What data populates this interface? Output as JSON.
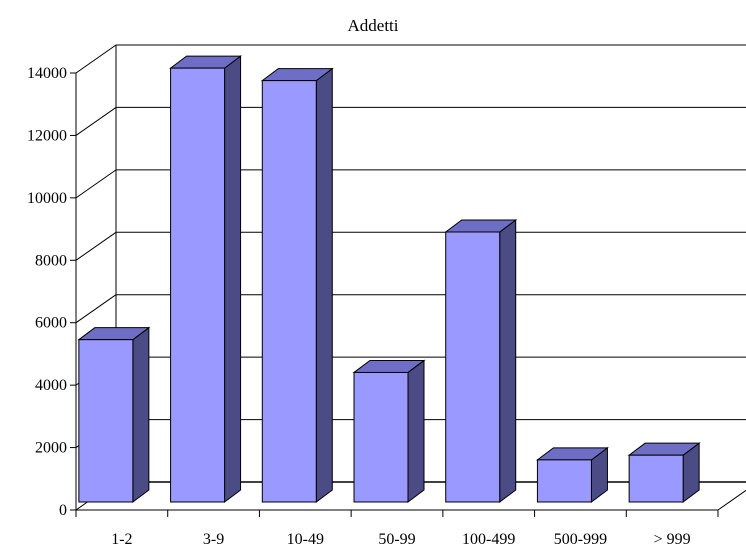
{
  "chart_data": {
    "type": "bar",
    "title": "Addetti",
    "xlabel": "",
    "ylabel": "",
    "categories": [
      "1-2",
      "3-9",
      "10-49",
      "50-99",
      "100-499",
      "500-999",
      "> 999"
    ],
    "series": [
      {
        "values": [
          5200,
          13900,
          13500,
          4150,
          8650,
          1350,
          1500
        ]
      }
    ],
    "ylim": [
      0,
      14000
    ],
    "yticks": [
      "0",
      "2000",
      "4000",
      "6000",
      "8000",
      "10000",
      "12000",
      "14000"
    ],
    "grid": true,
    "legend": "none",
    "colors": {
      "bar_front": "#9999ff",
      "bar_side": "#4b4b86",
      "bar_top": "#6e6ec6",
      "gridline": "#000000",
      "background": "#ffffff"
    }
  }
}
